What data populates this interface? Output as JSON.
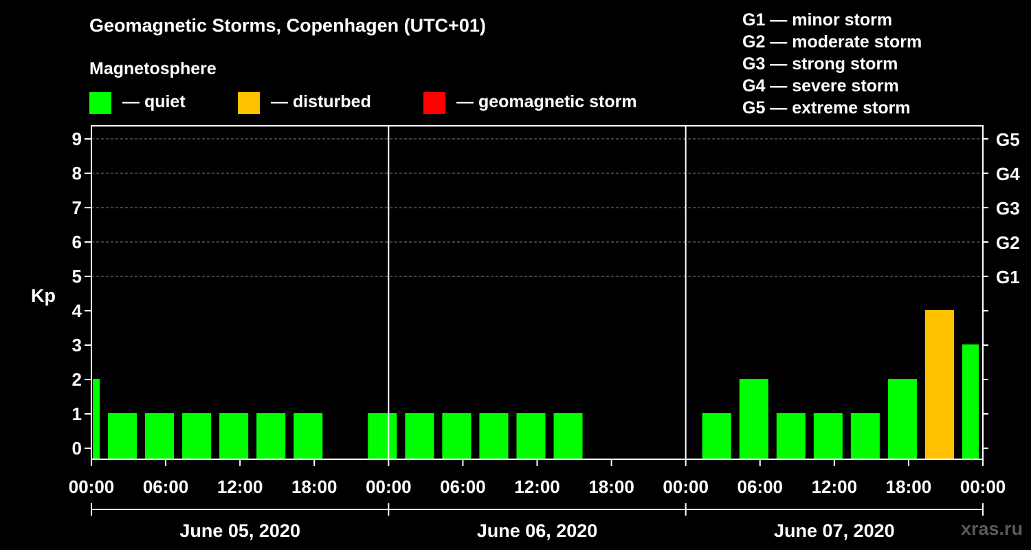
{
  "title": "Geomagnetic Storms, Copenhagen (UTC+01)",
  "subtitle": "Magnetosphere",
  "legend": [
    {
      "label": "— quiet",
      "color": "#00ff00"
    },
    {
      "label": "— disturbed",
      "color": "#ffc000"
    },
    {
      "label": "— geomagnetic storm",
      "color": "#ff0000"
    }
  ],
  "storm_scale": [
    "G1 — minor storm",
    "G2 — moderate storm",
    "G3 — strong storm",
    "G4 — severe storm",
    "G5 — extreme storm"
  ],
  "watermark": "xras.ru",
  "colors": {
    "quiet": "#00ff00",
    "disturbed": "#ffc000",
    "storm": "#ff0000",
    "background": "#000000",
    "axis": "#ffffff",
    "grid": "#808080"
  },
  "chart_data": {
    "type": "bar",
    "title": "Geomagnetic Storms, Copenhagen (UTC+01)",
    "ylabel": "Kp",
    "ylim": [
      0,
      9
    ],
    "yticks": [
      "0",
      "1",
      "2",
      "3",
      "4",
      "5",
      "6",
      "7",
      "8",
      "9"
    ],
    "gridlines_at": [
      5,
      6,
      7,
      8,
      9
    ],
    "right_axis": [
      {
        "kp": 5,
        "label": "G1"
      },
      {
        "kp": 6,
        "label": "G2"
      },
      {
        "kp": 7,
        "label": "G3"
      },
      {
        "kp": 8,
        "label": "G4"
      },
      {
        "kp": 9,
        "label": "G5"
      }
    ],
    "x_range_hours": [
      -1,
      71
    ],
    "xticks": [
      {
        "hour": -1,
        "label": "00:00"
      },
      {
        "hour": 5,
        "label": "06:00"
      },
      {
        "hour": 11,
        "label": "12:00"
      },
      {
        "hour": 17,
        "label": "18:00"
      },
      {
        "hour": 23,
        "label": "00:00"
      },
      {
        "hour": 29,
        "label": "06:00"
      },
      {
        "hour": 35,
        "label": "12:00"
      },
      {
        "hour": 41,
        "label": "18:00"
      },
      {
        "hour": 47,
        "label": "00:00"
      },
      {
        "hour": 53,
        "label": "06:00"
      },
      {
        "hour": 59,
        "label": "12:00"
      },
      {
        "hour": 65,
        "label": "18:00"
      },
      {
        "hour": 71,
        "label": "00:00"
      }
    ],
    "day_separators": [
      23,
      47
    ],
    "days": [
      {
        "label": "June 05, 2020",
        "from": -1,
        "to": 23
      },
      {
        "label": "June 06, 2020",
        "from": 23,
        "to": 47
      },
      {
        "label": "June 07, 2020",
        "from": 47,
        "to": 71
      }
    ],
    "series": [
      {
        "name": "Kp",
        "values": [
          {
            "start": -1,
            "end": 0,
            "kp": 2,
            "level": "quiet"
          },
          {
            "start": 0,
            "end": 3,
            "kp": 1,
            "level": "quiet"
          },
          {
            "start": 3,
            "end": 6,
            "kp": 1,
            "level": "quiet"
          },
          {
            "start": 6,
            "end": 9,
            "kp": 1,
            "level": "quiet"
          },
          {
            "start": 9,
            "end": 12,
            "kp": 1,
            "level": "quiet"
          },
          {
            "start": 12,
            "end": 15,
            "kp": 1,
            "level": "quiet"
          },
          {
            "start": 15,
            "end": 18,
            "kp": 1,
            "level": "quiet"
          },
          {
            "start": 18,
            "end": 21,
            "kp": 0,
            "level": "quiet"
          },
          {
            "start": 21,
            "end": 24,
            "kp": 1,
            "level": "quiet"
          },
          {
            "start": 24,
            "end": 27,
            "kp": 1,
            "level": "quiet"
          },
          {
            "start": 27,
            "end": 30,
            "kp": 1,
            "level": "quiet"
          },
          {
            "start": 30,
            "end": 33,
            "kp": 1,
            "level": "quiet"
          },
          {
            "start": 33,
            "end": 36,
            "kp": 1,
            "level": "quiet"
          },
          {
            "start": 36,
            "end": 39,
            "kp": 1,
            "level": "quiet"
          },
          {
            "start": 39,
            "end": 42,
            "kp": 0,
            "level": "quiet"
          },
          {
            "start": 42,
            "end": 45,
            "kp": 0,
            "level": "quiet"
          },
          {
            "start": 45,
            "end": 48,
            "kp": 0,
            "level": "quiet"
          },
          {
            "start": 48,
            "end": 51,
            "kp": 1,
            "level": "quiet"
          },
          {
            "start": 51,
            "end": 54,
            "kp": 2,
            "level": "quiet"
          },
          {
            "start": 54,
            "end": 57,
            "kp": 1,
            "level": "quiet"
          },
          {
            "start": 57,
            "end": 60,
            "kp": 1,
            "level": "quiet"
          },
          {
            "start": 60,
            "end": 63,
            "kp": 1,
            "level": "quiet"
          },
          {
            "start": 63,
            "end": 66,
            "kp": 2,
            "level": "quiet"
          },
          {
            "start": 66,
            "end": 69,
            "kp": 4,
            "level": "disturbed"
          },
          {
            "start": 69,
            "end": 71,
            "kp": 3,
            "level": "quiet"
          }
        ]
      }
    ]
  }
}
